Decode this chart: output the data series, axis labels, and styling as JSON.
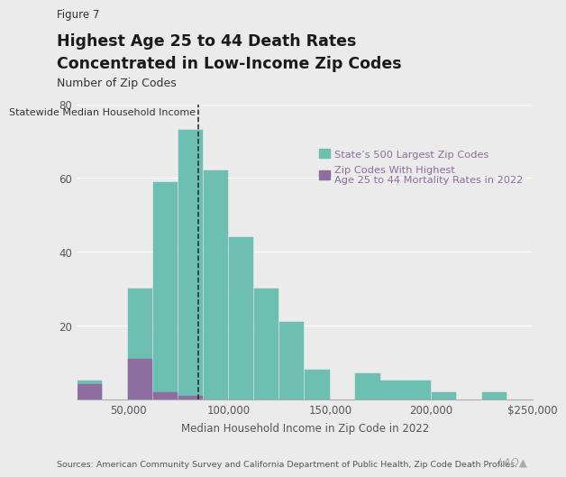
{
  "figure_label": "Figure 7",
  "title_line1": "Highest Age 25 to 44 Death Rates",
  "title_line2": "Concentrated in Low-Income Zip Codes",
  "subtitle": "Number of Zip Codes",
  "xlabel": "Median Household Income in Zip Code in 2022",
  "source": "Sources: American Community Survey and California Department of Public Health, Zip Code Death Profiles.",
  "dashed_line_x": 85000,
  "dashed_line_label": "Statewide Median Household Income",
  "teal_color": "#6dbfb2",
  "purple_color": "#8e6da0",
  "background_color": "#ebebeb",
  "plot_bg_color": "#ebebeb",
  "legend_teal": "State’s 500 Largest Zip Codes",
  "legend_purple_line1": "Zip Codes With Highest",
  "legend_purple_line2": "Age 25 to 44 Mortality Rates in 2022",
  "ylim": [
    0,
    80
  ],
  "yticks": [
    0,
    20,
    40,
    60,
    80
  ],
  "xticks": [
    50000,
    100000,
    150000,
    200000,
    250000
  ],
  "xticklabels": [
    "50,000",
    "100,000",
    "150,000",
    "200,000",
    "$250,000"
  ],
  "xlim": [
    25000,
    250000
  ],
  "bin_width": 12500,
  "bins_left": [
    25000,
    37500,
    50000,
    62500,
    75000,
    87500,
    100000,
    112500,
    125000,
    137500,
    150000,
    162500,
    175000,
    187500,
    200000,
    212500,
    225000,
    237500
  ],
  "teal_h": [
    5,
    0,
    30,
    59,
    73,
    62,
    44,
    30,
    21,
    8,
    0,
    7,
    5,
    5,
    2,
    0,
    2,
    0
  ],
  "purple_h": [
    4,
    0,
    11,
    2,
    1,
    0,
    0,
    0,
    0,
    0,
    0,
    0,
    0,
    0,
    0,
    0,
    0,
    0
  ]
}
